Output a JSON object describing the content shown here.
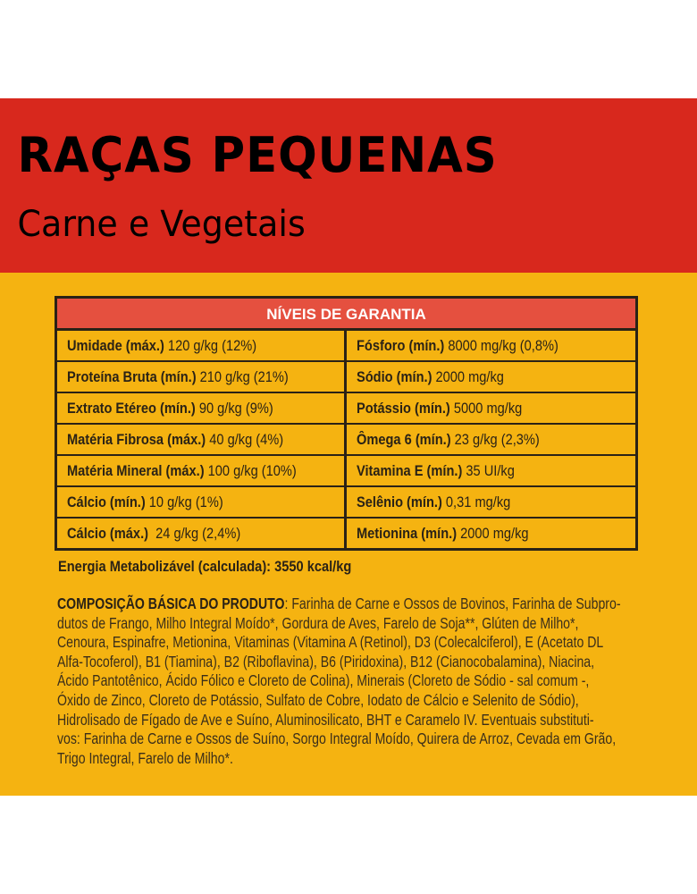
{
  "header": {
    "title": "RAÇAS PEQUENAS",
    "subtitle": "Carne e Vegetais"
  },
  "colors": {
    "band": "#d8281d",
    "panel": "#f5b311",
    "table_header": "#e5503f",
    "ink": "#2a2216"
  },
  "table": {
    "title": "NÍVEIS DE GARANTIA",
    "rows": [
      {
        "l_label": "Umidade (máx.)",
        "l_value": " 120 g/kg (12%)",
        "r_label": "Fósforo (mín.)",
        "r_value": " 8000 mg/kg (0,8%)"
      },
      {
        "l_label": "Proteína Bruta (mín.)",
        "l_value": " 210 g/kg (21%)",
        "r_label": "Sódio (mín.)",
        "r_value": " 2000 mg/kg"
      },
      {
        "l_label": "Extrato Etéreo (mín.)",
        "l_value": " 90 g/kg (9%)",
        "r_label": "Potássio (mín.)",
        "r_value": " 5000 mg/kg"
      },
      {
        "l_label": "Matéria Fibrosa (máx.)",
        "l_value": " 40 g/kg (4%)",
        "r_label": "Ômega 6 (mín.)",
        "r_value": " 23 g/kg (2,3%)"
      },
      {
        "l_label": "Matéria Mineral (máx.)",
        "l_value": " 100 g/kg (10%)",
        "r_label": "Vitamina E (mín.)",
        "r_value": " 35 UI/kg"
      },
      {
        "l_label": "Cálcio (mín.)",
        "l_value": " 10 g/kg (1%)",
        "r_label": "Selênio (mín.)",
        "r_value": " 0,31 mg/kg"
      },
      {
        "l_label": "Cálcio (máx.)",
        "l_value": "  24 g/kg (2,4%)",
        "r_label": "Metionina (mín.)",
        "r_value": " 2000 mg/kg"
      }
    ]
  },
  "energy": "Energia Metabolizável (calculada): 3550 kcal/kg",
  "composition": {
    "label": "COMPOSIÇÃO BÁSICA DO PRODUTO",
    "lines": [
      ": Farinha de Carne e Ossos de Bovinos, Farinha de Subpro-",
      "dutos de Frango, Milho Integral Moído*, Gordura de Aves,  Farelo de Soja**, Glúten de Milho*,",
      "Cenoura, Espinafre, Metionina, Vitaminas (Vitamina A (Retinol),  D3 (Colecalciferol), E (Acetato DL",
      "Alfa-Tocoferol), B1 (Tiamina), B2 (Riboflavina), B6 (Piridoxina), B12 (Cianocobalamina), Niacina,",
      "Ácido Pantotênico, Ácido Fólico e Cloreto de Colina), Minerais (Cloreto de Sódio - sal comum -,",
      "Óxido de Zinco, Cloreto de Potássio, Sulfato de Cobre, Iodato de Cálcio e Selenito de Sódio),",
      "Hidrolisado de Fígado de Ave e Suíno, Aluminosilicato, BHT e Caramelo IV. Eventuais substituti-",
      "vos: Farinha de Carne e Ossos de Suíno, Sorgo Integral Moído, Quirera de Arroz, Cevada em Grão,",
      "Trigo Integral, Farelo de Milho*."
    ]
  }
}
